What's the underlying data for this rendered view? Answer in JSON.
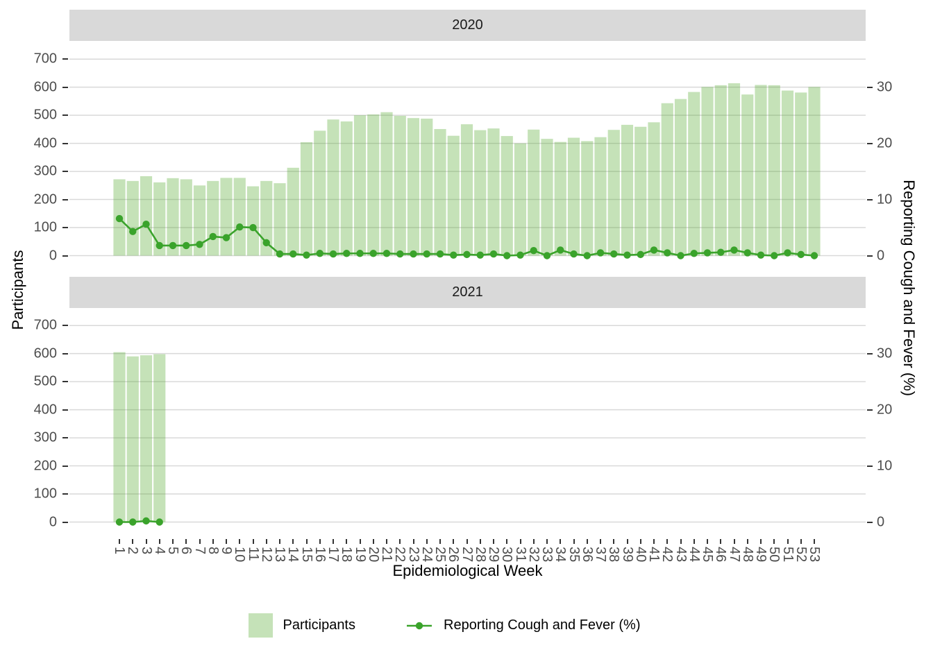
{
  "chart_data": {
    "type": "bar",
    "subtype": "dual-axis bar+line, faceted by year",
    "facets": [
      {
        "label": "2020",
        "weeks": [
          1,
          2,
          3,
          4,
          5,
          6,
          7,
          8,
          9,
          10,
          11,
          12,
          13,
          14,
          15,
          16,
          17,
          18,
          19,
          20,
          21,
          22,
          23,
          24,
          25,
          26,
          27,
          28,
          29,
          30,
          31,
          32,
          33,
          34,
          35,
          36,
          37,
          38,
          39,
          40,
          41,
          42,
          43,
          44,
          45,
          46,
          47,
          48,
          49,
          50,
          51,
          52,
          53
        ],
        "participants": [
          272,
          266,
          283,
          261,
          276,
          272,
          250,
          266,
          277,
          277,
          247,
          266,
          258,
          313,
          404,
          445,
          485,
          478,
          500,
          503,
          511,
          498,
          490,
          488,
          451,
          427,
          468,
          447,
          453,
          426,
          400,
          449,
          416,
          405,
          420,
          408,
          422,
          448,
          466,
          459,
          475,
          543,
          558,
          583,
          601,
          607,
          614,
          574,
          608,
          607,
          588,
          581,
          601
        ],
        "pct_cough_fever": [
          6.6,
          4.3,
          5.6,
          1.8,
          1.8,
          1.8,
          2.0,
          3.4,
          3.2,
          5.1,
          5.0,
          2.3,
          0.3,
          0.3,
          0.1,
          0.4,
          0.3,
          0.4,
          0.4,
          0.4,
          0.4,
          0.3,
          0.3,
          0.3,
          0.3,
          0.1,
          0.2,
          0.1,
          0.3,
          0.0,
          0.1,
          0.9,
          0.0,
          1.0,
          0.3,
          0.0,
          0.5,
          0.3,
          0.1,
          0.2,
          1.0,
          0.5,
          0.0,
          0.4,
          0.5,
          0.6,
          1.0,
          0.5,
          0.1,
          0.0,
          0.5,
          0.2,
          0.0
        ]
      },
      {
        "label": "2021",
        "weeks": [
          1,
          2,
          3,
          4
        ],
        "participants": [
          605,
          590,
          594,
          598
        ],
        "pct_cough_fever": [
          0.0,
          0.0,
          0.2,
          0.0
        ]
      }
    ],
    "x_axis": {
      "title": "Epidemiological Week",
      "ticks": [
        1,
        2,
        3,
        4,
        5,
        6,
        7,
        8,
        9,
        10,
        11,
        12,
        13,
        14,
        15,
        16,
        17,
        18,
        19,
        20,
        21,
        22,
        23,
        24,
        25,
        26,
        27,
        28,
        29,
        30,
        31,
        32,
        33,
        34,
        35,
        36,
        37,
        38,
        39,
        40,
        41,
        42,
        43,
        44,
        45,
        46,
        47,
        48,
        49,
        50,
        51,
        52,
        53
      ]
    },
    "y_left": {
      "title": "Participants",
      "ticks": [
        0,
        100,
        200,
        300,
        400,
        500,
        600,
        700
      ],
      "lim": [
        0,
        700
      ]
    },
    "y_right": {
      "title": "Reporting Cough and Fever (%)",
      "ticks": [
        0,
        10,
        20,
        30
      ],
      "lim": [
        0,
        35
      ]
    },
    "legend": [
      {
        "label": "Participants",
        "type": "fill"
      },
      {
        "label": "Reporting Cough and Fever (%)",
        "type": "line"
      }
    ],
    "layout": {
      "grid": "major horizontal only",
      "legend_position": "bottom"
    },
    "colors": {
      "bar_fill": "rgba(76,164,35,0.32)",
      "bar_fill_flat": "#c9e4bc",
      "line": "#3aa32b",
      "strip_bg": "#d9d9d9",
      "gridline": "#d9d9d9",
      "axis_text": "#4d4d4d",
      "tick_mark": "#333333",
      "title_text": "#000000"
    }
  }
}
